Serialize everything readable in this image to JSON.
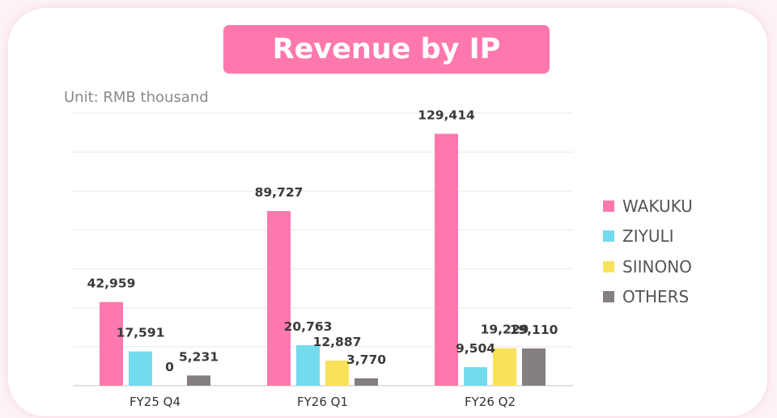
{
  "title": "Revenue by IP",
  "unit_note": "Unit: RMB thousand",
  "legend": [
    {
      "name": "WAKUKU",
      "color": "#fe78ad"
    },
    {
      "name": "ZIYULI",
      "color": "#73dbed"
    },
    {
      "name": "SIINONO",
      "color": "#f9e25a"
    },
    {
      "name": "OTHERS",
      "color": "#857f7f"
    }
  ],
  "chart_data": {
    "type": "bar",
    "title": "Revenue by IP",
    "ylabel": "Unit: RMB thousand",
    "categories": [
      "FY25 Q4",
      "FY26 Q1",
      "FY26 Q2"
    ],
    "series": [
      {
        "name": "WAKUKU",
        "color": "#fe78ad",
        "values": [
          42959,
          89727,
          129414
        ],
        "labels": [
          "42,959",
          "89,727",
          "129,414"
        ]
      },
      {
        "name": "ZIYULI",
        "color": "#73dbed",
        "values": [
          17591,
          20763,
          9504
        ],
        "labels": [
          "17,591",
          "20,763",
          "9,504"
        ]
      },
      {
        "name": "SIINONO",
        "color": "#f9e25a",
        "values": [
          0,
          12887,
          19229
        ],
        "labels": [
          "0",
          "12,887",
          "19,229"
        ]
      },
      {
        "name": "OTHERS",
        "color": "#857f7f",
        "values": [
          5231,
          3770,
          19110
        ],
        "labels": [
          "5,231",
          "3,770",
          "19,110"
        ]
      }
    ],
    "ylim": [
      0,
      140000
    ],
    "grid": true,
    "legend_position": "right"
  }
}
